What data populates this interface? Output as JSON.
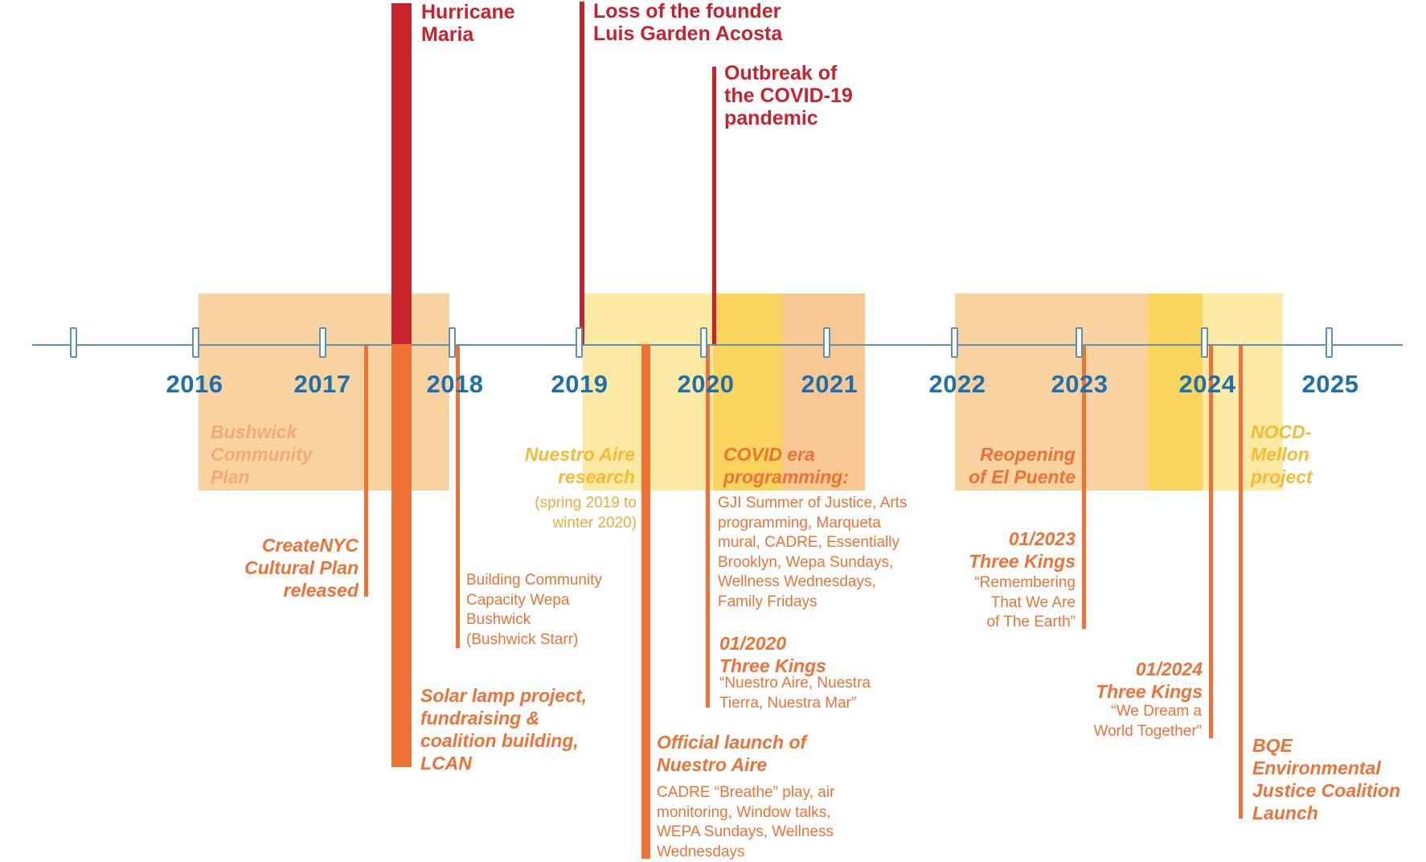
{
  "colors": {
    "axis": "#5b93b8",
    "year_label": "#1d6fae",
    "red": "#c8232c",
    "orange": "#ee7235",
    "box_peach": "#f8d3a0",
    "box_pale_yellow": "#fce9a3",
    "box_yellow": "#fbd45e",
    "box_light_orange": "#f9c892"
  },
  "years": [
    "2016",
    "2017",
    "2018",
    "2019",
    "2020",
    "2021",
    "2022",
    "2023",
    "2024",
    "2025"
  ],
  "events_top": {
    "hurricane": [
      "Hurricane",
      "Maria"
    ],
    "founder": [
      "Loss of the founder",
      "Luis Garden Acosta"
    ],
    "covid": [
      "Outbreak of",
      "the COVID-19",
      "pandemic"
    ]
  },
  "periods": {
    "bushwick": [
      "Bushwick",
      "Community",
      "Plan"
    ],
    "nuestro_research": {
      "title": [
        "Nuestro Aire",
        "research"
      ],
      "desc": [
        "(spring 2019 to",
        "winter 2020)"
      ]
    },
    "covid_prog": {
      "title": [
        "COVID era",
        "programming:"
      ],
      "desc": [
        "GJI Summer of Justice, Arts",
        "programming, Marqueta",
        "mural, CADRE, Essentially",
        "Brooklyn, Wepa Sundays,",
        "Wellness Wednesdays,",
        "Family Fridays"
      ]
    },
    "reopening": [
      "Reopening",
      "of El Puente"
    ],
    "nocd": [
      "NOCD-",
      "Mellon",
      "project"
    ]
  },
  "events_bottom": {
    "createnyc": [
      "CreateNYC",
      "Cultural Plan",
      "released"
    ],
    "building": [
      "Building Community",
      "Capacity Wepa",
      "Bushwick",
      "(Bushwick Starr)"
    ],
    "solar": [
      "Solar lamp project,",
      "fundraising &",
      "coalition building,",
      "LCAN"
    ],
    "launch": {
      "title": [
        "Official launch of",
        "Nuestro Aire"
      ],
      "desc": [
        "CADRE “Breathe” play, air",
        "monitoring, Window talks,",
        "WEPA Sundays, Wellness",
        "Wednesdays"
      ]
    },
    "kings2020": {
      "title": [
        "01/2020",
        "Three Kings"
      ],
      "desc": [
        "“Nuestro Aire, Nuestra",
        "Tierra, Nuestra Mar”"
      ]
    },
    "kings2023": {
      "title": [
        "01/2023",
        "Three Kings"
      ],
      "desc": [
        "“Remembering",
        "That We Are",
        "of The Earth”"
      ]
    },
    "kings2024": {
      "title": [
        "01/2024",
        "Three Kings"
      ],
      "desc": [
        "“We Dream a",
        "World Together”"
      ]
    },
    "bqe": [
      "BQE",
      "Environmental",
      "Justice Coalition",
      "Launch"
    ]
  }
}
